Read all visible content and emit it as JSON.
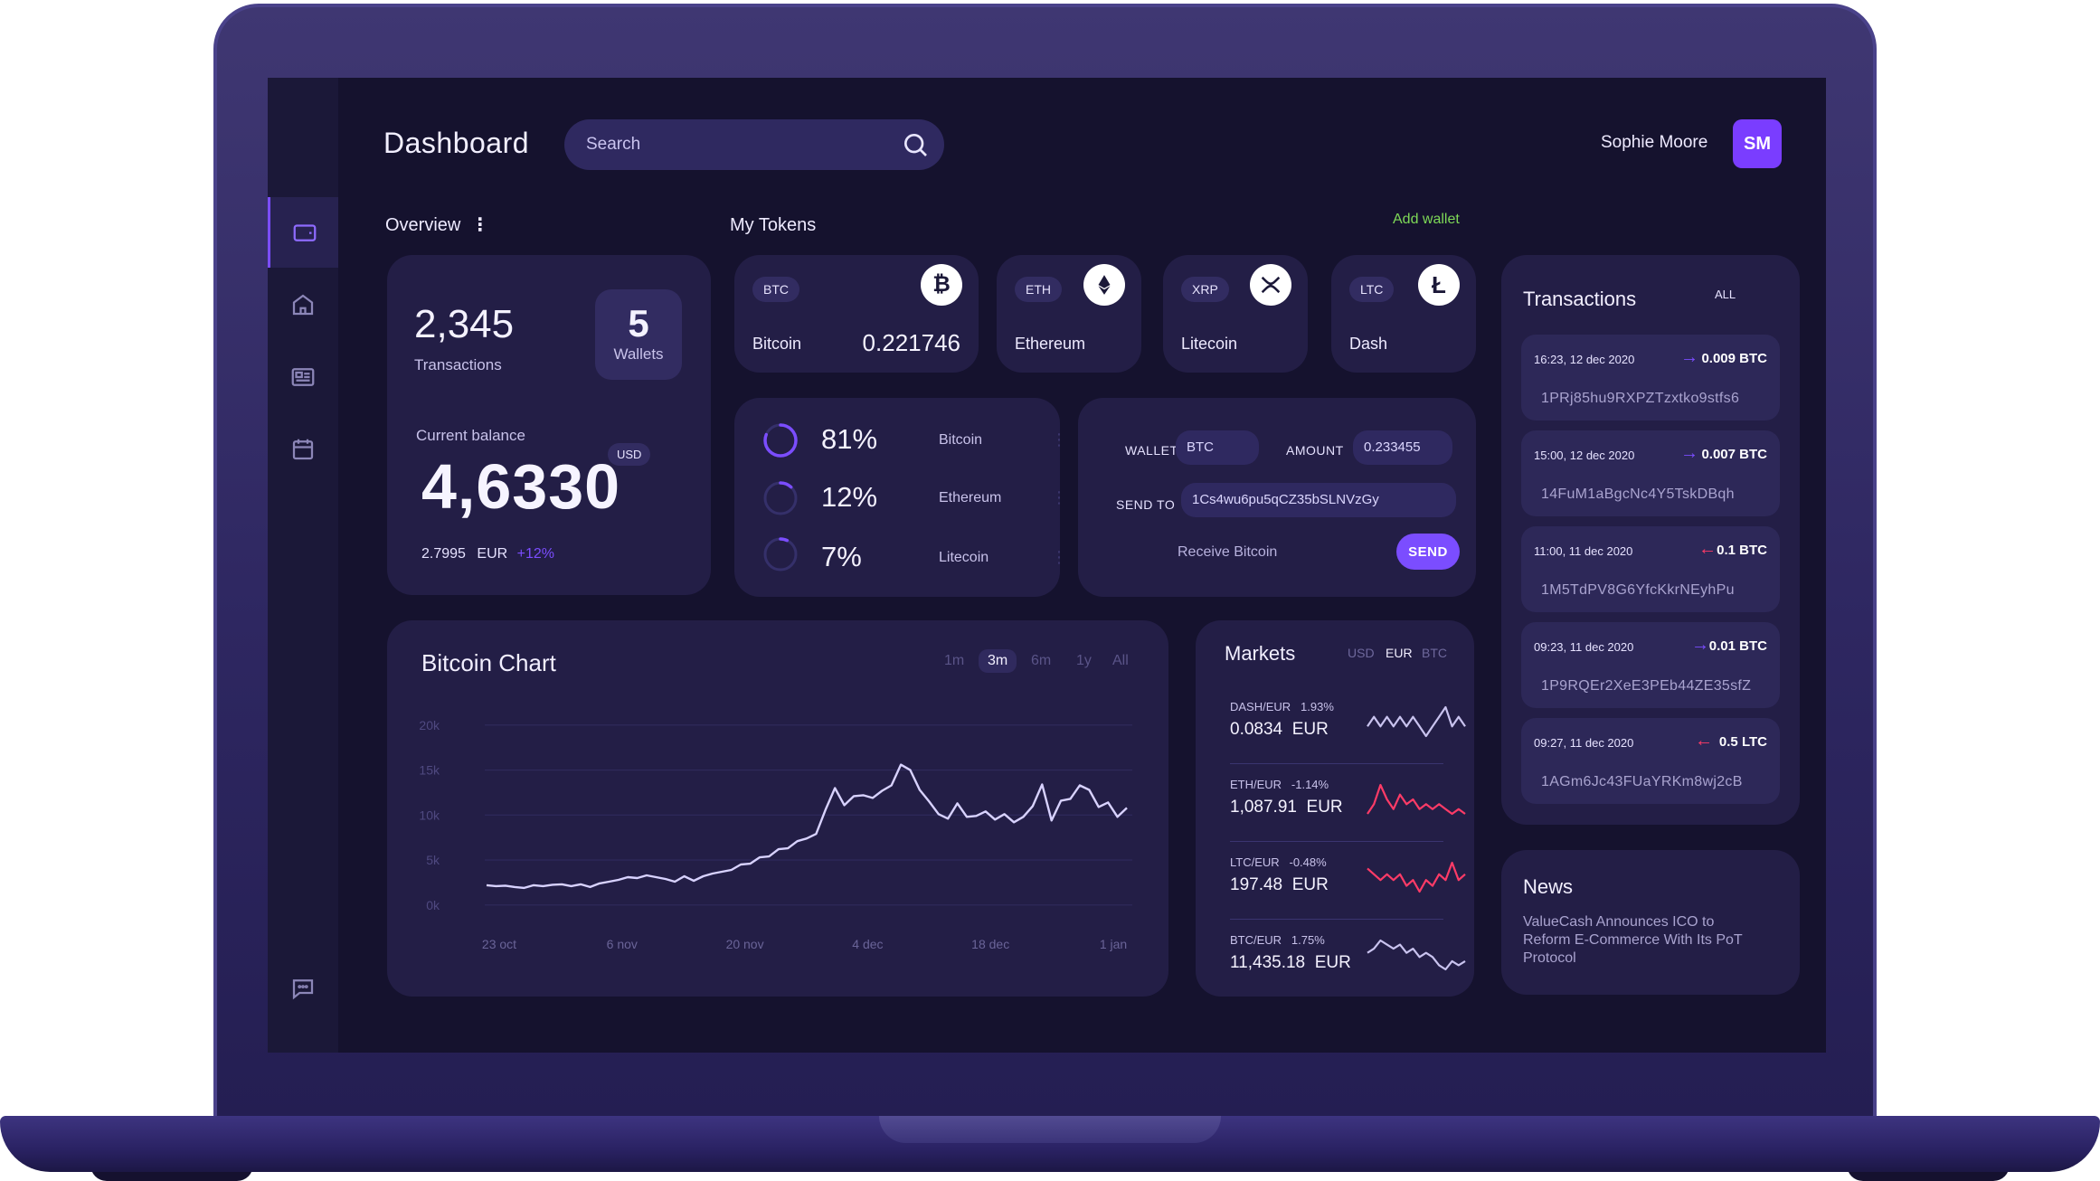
{
  "header": {
    "title": "Dashboard",
    "search_placeholder": "Search",
    "user_name": "Sophie Moore",
    "user_initials": "SM"
  },
  "overview": {
    "label": "Overview",
    "transactions_count": "2,345",
    "transactions_label": "Transactions",
    "wallets_count": "5",
    "wallets_label": "Wallets",
    "balance_label": "Current balance",
    "currency": "USD",
    "balance": "4,6330",
    "eur_value": "2.7995",
    "eur_label": "EUR",
    "eur_change": "+12%"
  },
  "tokens": {
    "label": "My Tokens",
    "add_wallet": "Add wallet",
    "items": [
      {
        "tag": "BTC",
        "name": "Bitcoin",
        "amount": "0.221746",
        "icon": "bitcoin-icon"
      },
      {
        "tag": "ETH",
        "name": "Ethereum",
        "icon": "ethereum-icon"
      },
      {
        "tag": "XRP",
        "name": "Litecoin",
        "icon": "xrp-icon"
      },
      {
        "tag": "LTC",
        "name": "Dash",
        "icon": "litecoin-icon"
      }
    ]
  },
  "allocation": [
    {
      "value": "81%",
      "name": "Bitcoin",
      "fraction": 0.81
    },
    {
      "value": "12%",
      "name": "Ethereum",
      "fraction": 0.12
    },
    {
      "value": "7%",
      "name": "Litecoin",
      "fraction": 0.07
    }
  ],
  "send_form": {
    "wallet_label": "WALLET",
    "wallet_value": "BTC",
    "amount_label": "AMOUNT",
    "amount_value": "0.233455",
    "send_to_label": "SEND TO",
    "send_to_value": "1Cs4wu6pu5qCZ35bSLNVzGy",
    "receive_label": "Receive Bitcoin",
    "send_button": "SEND"
  },
  "chart": {
    "title": "Bitcoin Chart",
    "ranges": [
      "1m",
      "3m",
      "6m",
      "1y",
      "All"
    ],
    "active_range": "3m"
  },
  "chart_data": {
    "type": "line",
    "title": "Bitcoin Chart",
    "xlabel": "",
    "ylabel": "",
    "x_ticks": [
      "23 oct",
      "6 nov",
      "20 nov",
      "4 dec",
      "18 dec",
      "1 jan"
    ],
    "y_ticks": [
      "20k",
      "15k",
      "10k",
      "5k",
      "0k"
    ],
    "ylim": [
      0,
      20000
    ],
    "grid": true,
    "series": [
      {
        "values": [
          2200,
          2100,
          2150,
          2000,
          1900,
          2200,
          2100,
          2250,
          2300,
          2100,
          2300,
          2000,
          2400,
          2600,
          2800,
          3100,
          3000,
          3300,
          3100,
          2900,
          2600,
          3200,
          2700,
          3200,
          3500,
          3700,
          3900,
          4500,
          4600,
          5300,
          5400,
          6200,
          6300,
          7100,
          7400,
          7900,
          10600,
          13000,
          11100,
          12100,
          12200,
          11900,
          12700,
          13300,
          15600,
          15000,
          12800,
          11500,
          10100,
          9600,
          11300,
          9800,
          9900,
          10400,
          9500,
          10100,
          9200,
          9800,
          11000,
          13400,
          9400,
          11600,
          11800,
          13300,
          12800,
          10900,
          11400,
          9800,
          10800
        ]
      }
    ]
  },
  "markets": {
    "title": "Markets",
    "currencies": [
      "USD",
      "EUR",
      "BTC"
    ],
    "active_currency": "EUR",
    "items": [
      {
        "pair": "DASH/EUR",
        "change": "1.93%",
        "price": "0.0834",
        "unit": "EUR",
        "trend": "up",
        "color": "#c9c3ef",
        "spark": [
          5,
          6,
          5,
          6,
          5,
          6,
          5,
          6,
          5,
          4,
          5,
          6,
          7,
          5,
          6,
          5
        ]
      },
      {
        "pair": "ETH/EUR",
        "change": "-1.14%",
        "price": "1,087.91",
        "unit": "EUR",
        "trend": "down",
        "color": "#ff3b67",
        "spark": [
          3,
          5,
          9,
          6,
          4,
          7,
          5,
          6,
          4,
          5,
          4,
          5,
          4,
          3,
          4,
          3
        ]
      },
      {
        "pair": "LTC/EUR",
        "change": "-0.48%",
        "price": "197.48",
        "unit": "EUR",
        "trend": "down",
        "color": "#ff3b67",
        "spark": [
          7,
          6,
          5,
          6,
          5,
          6,
          4,
          5,
          3,
          5,
          4,
          6,
          5,
          8,
          5,
          6
        ]
      },
      {
        "pair": "BTC/EUR",
        "change": "1.75%",
        "price": "11,435.18",
        "unit": "EUR",
        "trend": "up",
        "color": "#c9c3ef",
        "spark": [
          6,
          7,
          9,
          8,
          7,
          8,
          6,
          7,
          5,
          6,
          5,
          3,
          2,
          4,
          3,
          4
        ]
      }
    ]
  },
  "transactions": {
    "title": "Transactions",
    "filter": "ALL",
    "items": [
      {
        "time": "16:23, 12 dec 2020",
        "direction": "in",
        "amount": "0.009 BTC",
        "address": "1PRj85hu9RXPZTzxtko9stfs6"
      },
      {
        "time": "15:00, 12 dec 2020",
        "direction": "in",
        "amount": "0.007 BTC",
        "address": "14FuM1aBgcNc4Y5TskDBqh"
      },
      {
        "time": "11:00, 11 dec 2020",
        "direction": "out",
        "amount": "0.1 BTC",
        "address": "1M5TdPV8G6YfcKkrNEyhPu"
      },
      {
        "time": "09:23, 11 dec 2020",
        "direction": "in",
        "amount": "0.01 BTC",
        "address": "1P9RQEr2XeE3PEb44ZE35sfZ"
      },
      {
        "time": "09:27, 11 dec 2020",
        "direction": "out",
        "amount": "0.5 LTC",
        "address": "1AGm6Jc43FUaYRKm8wj2cB"
      }
    ]
  },
  "news": {
    "title": "News",
    "body": "ValueCash Announces ICO to Reform E-Commerce With Its PoT Protocol"
  },
  "colors": {
    "accent": "#7b4dff",
    "positive": "#7ed957",
    "negative": "#ff3b67",
    "card": "#231e46",
    "screen": "#15122e"
  }
}
